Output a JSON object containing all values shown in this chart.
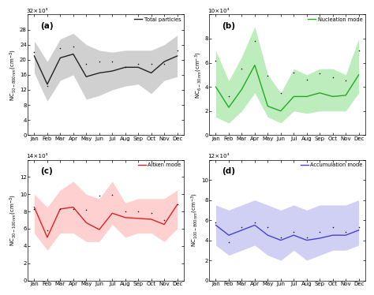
{
  "months": [
    "Jan",
    "Feb",
    "Mar",
    "Apr",
    "May",
    "Jun",
    "Jul",
    "Aug",
    "Sep",
    "Oct",
    "Nov",
    "Dec"
  ],
  "panel_a": {
    "label": "Total particles",
    "color": "#222222",
    "fill_color": "#aaaaaa",
    "fill_alpha": 0.55,
    "mean": [
      21.0,
      13.5,
      20.5,
      21.5,
      15.5,
      16.5,
      17.0,
      18.0,
      18.0,
      16.5,
      19.5,
      21.0
    ],
    "upper": [
      25.0,
      19.5,
      25.5,
      27.0,
      24.0,
      22.5,
      22.0,
      22.5,
      22.5,
      22.5,
      24.0,
      26.5
    ],
    "lower": [
      16.5,
      9.0,
      14.5,
      16.0,
      9.5,
      10.5,
      12.0,
      13.0,
      13.5,
      11.0,
      14.5,
      15.5
    ],
    "scatter": [
      22.0,
      13.0,
      23.0,
      23.5,
      19.0,
      19.5,
      19.5,
      18.0,
      19.0,
      19.0,
      19.0,
      22.5
    ],
    "ylabel": "NC$_{10-800\\,nm}$(cm$^{-3}$)",
    "ymax": 32,
    "scale_text": "32×10³",
    "yticks": [
      0,
      4,
      8,
      12,
      16,
      20,
      24,
      28,
      32
    ],
    "ytick_labels": [
      "0",
      "4",
      "8",
      "12",
      "16",
      "20",
      "24",
      "28",
      ""
    ],
    "panel_label": "(a)"
  },
  "panel_b": {
    "label": "Nucleation mode",
    "color": "#22aa22",
    "fill_color": "#88dd88",
    "fill_alpha": 0.55,
    "mean": [
      4.0,
      2.3,
      3.8,
      5.8,
      2.4,
      2.0,
      3.2,
      3.2,
      3.5,
      3.2,
      3.3,
      5.0
    ],
    "upper": [
      7.0,
      4.5,
      6.5,
      9.0,
      5.0,
      3.5,
      5.5,
      5.0,
      5.5,
      5.5,
      5.0,
      8.0
    ],
    "lower": [
      1.5,
      1.0,
      2.0,
      3.5,
      1.5,
      1.0,
      2.0,
      1.8,
      2.0,
      2.0,
      2.0,
      3.5
    ],
    "scatter": [
      6.2,
      3.2,
      5.5,
      7.8,
      4.9,
      3.5,
      5.2,
      4.6,
      5.1,
      4.8,
      4.5,
      7.0
    ],
    "ylabel": "NC$_{6-30\\,nm}$(cm$^{-3}$)",
    "ymax": 10,
    "scale_text": "10×10³",
    "yticks": [
      0,
      2,
      4,
      6,
      8,
      10
    ],
    "ytick_labels": [
      "0",
      "2",
      "4",
      "6",
      "8",
      ""
    ],
    "panel_label": "(b)"
  },
  "panel_c": {
    "label": "Aitken mode",
    "color": "#dd2222",
    "fill_color": "#ffaaaa",
    "fill_alpha": 0.55,
    "mean": [
      8.5,
      5.0,
      8.3,
      8.5,
      6.7,
      5.9,
      7.8,
      7.3,
      7.2,
      7.1,
      6.5,
      8.8
    ],
    "upper": [
      10.0,
      8.5,
      10.5,
      11.5,
      10.0,
      9.5,
      11.5,
      9.0,
      9.5,
      9.5,
      9.5,
      10.5
    ],
    "lower": [
      5.5,
      3.5,
      5.5,
      5.5,
      4.5,
      4.5,
      6.5,
      5.0,
      5.5,
      5.5,
      4.5,
      6.0
    ],
    "scatter": [
      8.3,
      5.8,
      8.3,
      8.3,
      8.2,
      9.8,
      9.9,
      8.0,
      8.0,
      7.8,
      7.0,
      8.8
    ],
    "ylabel": "NC$_{30-100\\,nm}$(cm$^{-3}$)",
    "ymax": 14,
    "scale_text": "14×10³",
    "yticks": [
      0,
      2,
      4,
      6,
      8,
      10,
      12,
      14
    ],
    "ytick_labels": [
      "0",
      "2",
      "4",
      "6",
      "8",
      "10",
      "12",
      ""
    ],
    "panel_label": "(c)"
  },
  "panel_d": {
    "label": "Accumulation mode",
    "color": "#4444cc",
    "fill_color": "#aaaaee",
    "fill_alpha": 0.55,
    "mean": [
      5.5,
      4.5,
      5.0,
      5.5,
      4.5,
      4.0,
      4.5,
      4.0,
      4.2,
      4.5,
      4.5,
      5.0
    ],
    "upper": [
      7.5,
      7.0,
      7.5,
      8.0,
      7.5,
      7.0,
      7.5,
      7.0,
      7.5,
      7.5,
      7.5,
      8.0
    ],
    "lower": [
      3.5,
      2.5,
      3.0,
      3.5,
      2.5,
      2.0,
      3.0,
      2.0,
      2.5,
      3.0,
      3.0,
      3.5
    ],
    "scatter": [
      5.8,
      3.8,
      5.3,
      5.8,
      5.3,
      4.3,
      4.8,
      4.3,
      4.8,
      5.3,
      4.8,
      5.3
    ],
    "ylabel": "NC$_{100-800\\,nm}$(cm$^{-3}$)",
    "ymax": 12,
    "scale_text": "12×10³",
    "yticks": [
      0,
      2,
      4,
      6,
      8,
      10,
      12
    ],
    "ytick_labels": [
      "0",
      "2",
      "4",
      "6",
      "8",
      "10",
      ""
    ],
    "panel_label": "(d)"
  },
  "background_color": "#ffffff"
}
